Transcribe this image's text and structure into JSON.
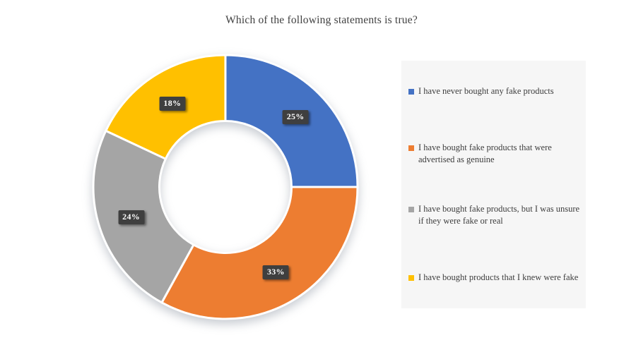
{
  "chart_data": {
    "type": "pie",
    "subtype": "donut",
    "title": "Which of the following statements is true?",
    "categories": [
      "I have never bought any fake products",
      "I have bought fake products that were advertised as genuine",
      "I have bought fake products, but I was unsure if they were fake or real",
      "I have bought products that I knew were fake"
    ],
    "values": [
      25,
      33,
      24,
      18
    ],
    "data_labels": [
      "25%",
      "33%",
      "24%",
      "18%"
    ],
    "colors": [
      "#4472C4",
      "#ED7D31",
      "#A5A5A5",
      "#FFC000"
    ],
    "hole_ratio": 0.5,
    "start_angle_deg": 0,
    "direction": "clockwise",
    "legend_position": "right",
    "grid": false,
    "data_label_bg": "#3F3F3F",
    "data_label_color": "#FFFFFF",
    "title_color": "#3F3F3F",
    "legend_background": "#F6F6F6"
  },
  "legend": {
    "items": [
      {
        "label": "I have never bought any fake products"
      },
      {
        "label": "I have bought fake products that were\nadvertised as genuine"
      },
      {
        "label": "I have bought fake products, but I was unsure\nif they were fake or real"
      },
      {
        "label": "I have bought products that I knew were fake"
      }
    ]
  }
}
